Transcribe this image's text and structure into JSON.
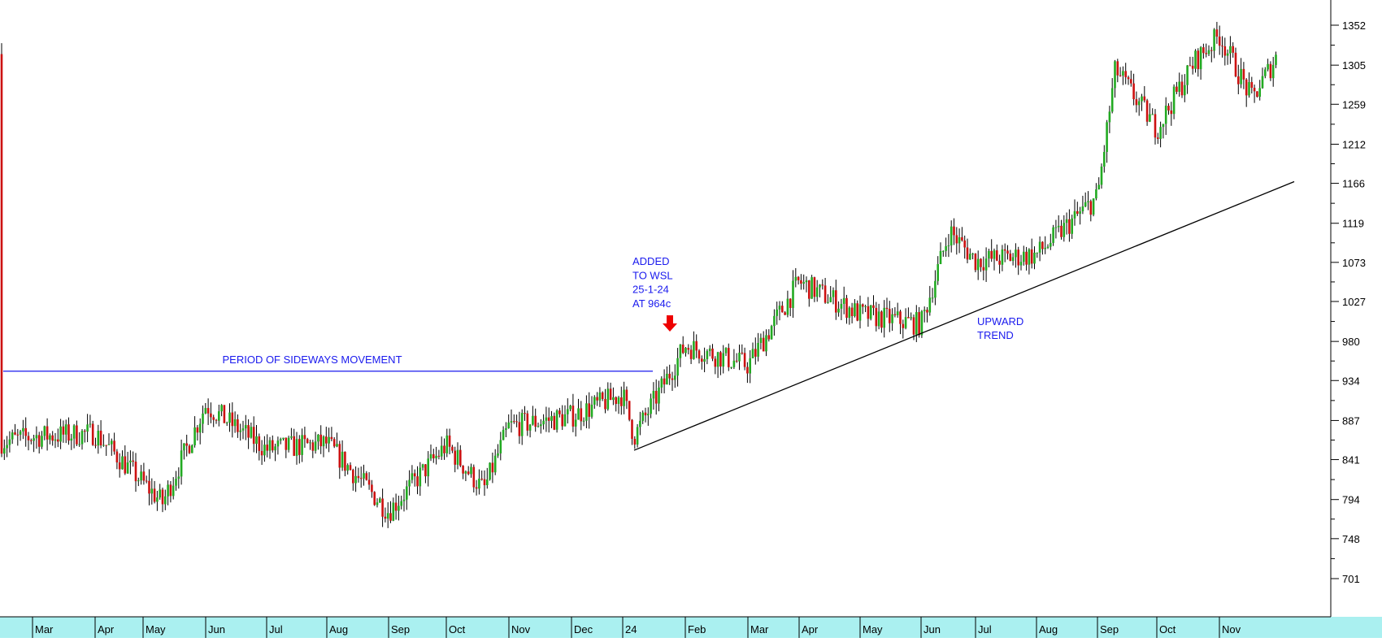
{
  "chart_data": {
    "type": "candlestick",
    "title": "",
    "xlabel": "",
    "ylabel": "",
    "ylim": [
      655,
      1378
    ],
    "y_ticks": [
      701,
      748,
      794,
      841,
      887,
      934,
      980,
      1027,
      1073,
      1119,
      1166,
      1212,
      1259,
      1305,
      1352
    ],
    "x_tick_labels": [
      "Mar",
      "Apr",
      "May",
      "Jun",
      "Jul",
      "Aug",
      "Sep",
      "Oct",
      "Nov",
      "Dec",
      "24",
      "Feb",
      "Mar",
      "Apr",
      "May",
      "Jun",
      "Jul",
      "Aug",
      "Sep",
      "Oct",
      "Nov"
    ],
    "price_path": [
      {
        "label": "Mar",
        "close": 862
      },
      {
        "label": "Apr",
        "close": 868
      },
      {
        "label": "May",
        "close": 872
      },
      {
        "label": "May-late",
        "close": 790
      },
      {
        "label": "Jun",
        "close": 905
      },
      {
        "label": "Jul",
        "close": 853
      },
      {
        "label": "Aug",
        "close": 860
      },
      {
        "label": "Sep",
        "close": 780
      },
      {
        "label": "Oct",
        "close": 858
      },
      {
        "label": "Oct-late",
        "close": 805
      },
      {
        "label": "Nov",
        "close": 880
      },
      {
        "label": "Dec",
        "close": 892
      },
      {
        "label": "24",
        "close": 918
      },
      {
        "label": "24-dip",
        "close": 868
      },
      {
        "label": "Feb",
        "close": 975
      },
      {
        "label": "Mar",
        "close": 952
      },
      {
        "label": "Apr",
        "close": 1050
      },
      {
        "label": "May",
        "close": 1012
      },
      {
        "label": "Jun",
        "close": 1000
      },
      {
        "label": "Jun-spike",
        "close": 1110
      },
      {
        "label": "Jul",
        "close": 1075
      },
      {
        "label": "Aug",
        "close": 1082
      },
      {
        "label": "Sep",
        "close": 1150
      },
      {
        "label": "Sep-jump",
        "close": 1300
      },
      {
        "label": "Oct",
        "close": 1230
      },
      {
        "label": "Oct-late",
        "close": 1310
      },
      {
        "label": "Nov",
        "close": 1340
      },
      {
        "label": "Nov-dip",
        "close": 1265
      },
      {
        "label": "Nov-end",
        "close": 1318
      }
    ],
    "resistance_line": {
      "label": "PERIOD OF SIDEWAYS MOVEMENT",
      "price": 945
    },
    "trend_line": {
      "label_lines": [
        "UPWARD",
        "TREND"
      ],
      "start": {
        "date": "24",
        "price": 852
      },
      "end": {
        "date": "Nov",
        "price": 1168
      }
    },
    "annotation": {
      "lines": [
        "ADDED",
        "TO WSL",
        "25-1-24",
        "AT 964c"
      ],
      "marker": "red-down-arrow"
    },
    "grid": false,
    "colors": {
      "up": "#22aa22",
      "down": "#cc1111",
      "annotation": "#1a1aee",
      "trend": "#000000",
      "axis_band": "#aaf0f0",
      "arrow": "#ee0000"
    }
  }
}
